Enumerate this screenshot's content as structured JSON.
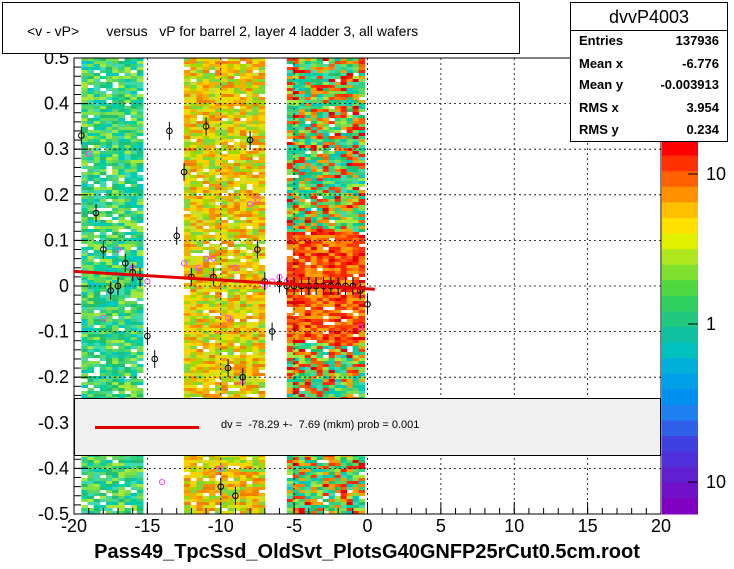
{
  "title": "<v - vP>       versus   vP for barrel 2, layer 4 ladder 3, all wafers",
  "footer": "Pass49_TpcSsd_OldSvt_PlotsG40GNFP25rCut0.5cm.root",
  "stats": {
    "name": "dvvP4003",
    "rows": [
      {
        "label": "Entries",
        "value": "137936"
      },
      {
        "label": "Mean x",
        "value": "-6.776"
      },
      {
        "label": "Mean y",
        "value": "-0.003913"
      },
      {
        "label": "RMS x",
        "value": "3.954"
      },
      {
        "label": "RMS y",
        "value": "0.234"
      }
    ]
  },
  "fit": {
    "text": "dv =  -78.29 +-  7.69 (mkm) prob = 0.001",
    "color": "#e00000",
    "line": {
      "x": [
        -20,
        0.5
      ],
      "y": [
        0.032,
        -0.007
      ]
    }
  },
  "chart_data": {
    "type": "heatmap",
    "title": "<v - vP>       versus   vP for barrel 2, layer 4 ladder 3, all wafers",
    "xlim": [
      -20,
      20
    ],
    "ylim": [
      -0.5,
      0.5
    ],
    "xticks": [
      "-20",
      "-15",
      "-10",
      "-5",
      "0",
      "5",
      "10",
      "15",
      "20"
    ],
    "yticks": [
      "-0.5",
      "-0.4",
      "-0.3",
      "-0.2",
      "-0.1",
      "0",
      "0.1",
      "0.2",
      "0.3",
      "0.4",
      "0.5"
    ],
    "grid": true,
    "colorbar": {
      "scale": "log",
      "labels": [
        "10",
        "1",
        "10"
      ]
    },
    "bands": [
      {
        "x": [
          -19.5,
          -15.3
        ],
        "level": "low"
      },
      {
        "x": [
          -12.5,
          -7.0
        ],
        "level": "mid"
      },
      {
        "x": [
          -5.5,
          -0.2
        ],
        "level": "high"
      }
    ],
    "profile_black": {
      "x": [
        -19.5,
        -18.5,
        -18.0,
        -17.5,
        -17.0,
        -16.5,
        -16.0,
        -15.5,
        -15.0,
        -14.5,
        -13.5,
        -13.0,
        -12.5,
        -12.0,
        -11.0,
        -10.5,
        -10.0,
        -9.5,
        -9.0,
        -8.5,
        -8.0,
        -7.5,
        -7.0,
        -6.5,
        -6.0,
        -5.5,
        -5.0,
        -4.5,
        -4.0,
        -3.5,
        -3.0,
        -2.5,
        -2.0,
        -1.5,
        -1.0,
        -0.5,
        0.0
      ],
      "y": [
        0.33,
        0.16,
        0.08,
        -0.01,
        0.0,
        0.05,
        0.03,
        0.02,
        -0.11,
        -0.16,
        0.34,
        0.11,
        0.25,
        0.02,
        0.35,
        0.02,
        -0.44,
        -0.18,
        -0.46,
        -0.2,
        0.32,
        0.08,
        0.01,
        -0.1,
        0.005,
        0.0,
        0.0,
        0.0,
        0.0,
        0.0,
        0.0,
        0.0,
        0.0,
        0.0,
        0.0,
        -0.01,
        -0.04
      ]
    },
    "profile_magenta": {
      "x": [
        -19.0,
        -18.0,
        -17.0,
        -16.0,
        -15.0,
        -14.0,
        -12.5,
        -11.5,
        -11.0,
        -10.5,
        -10.0,
        -9.5,
        -9.0,
        -8.5,
        -8.0,
        -7.5,
        -7.0,
        -6.5,
        -6.0,
        -5.5,
        -5.0,
        -4.5,
        -4.0,
        -3.5,
        -3.0,
        -2.5,
        -2.0,
        -1.5,
        -1.0,
        -0.5
      ],
      "y": [
        0.29,
        -0.07,
        0.08,
        0.04,
        0.01,
        -0.43,
        0.05,
        0.04,
        0.06,
        0.06,
        -0.4,
        -0.07,
        0.04,
        -0.21,
        0.18,
        0.19,
        0.0,
        0.01,
        0.02,
        0.01,
        0.0,
        0.0,
        0.0,
        0.0,
        0.0,
        0.0,
        0.0,
        0.0,
        0.0,
        -0.09
      ]
    }
  }
}
